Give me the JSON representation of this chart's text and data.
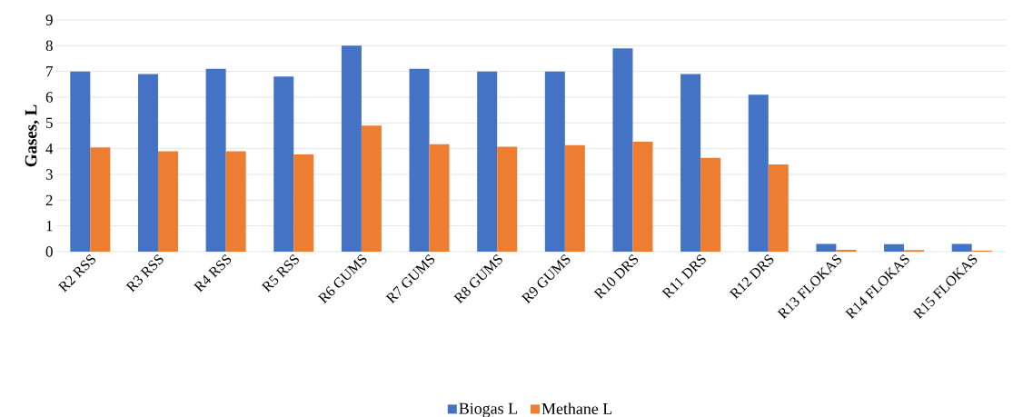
{
  "chart_data": {
    "type": "bar",
    "ylabel": "Gases, L",
    "categories": [
      "R2 RSS",
      "R3 RSS",
      "R4 RSS",
      "R5 RSS",
      "R6 GUMS",
      "R7 GUMS",
      "R8 GUMS",
      "R9 GUMS",
      "R10 DRS",
      "R11 DRS",
      "R12 DRS",
      "R13 FLOKAS",
      "R14 FLOKAS",
      "R15 FLOKAS"
    ],
    "series": [
      {
        "name": "Biogas L",
        "color": "#4472c4",
        "values": [
          7.0,
          6.9,
          7.1,
          6.8,
          8.0,
          7.1,
          7.0,
          7.0,
          7.9,
          6.9,
          6.1,
          0.3,
          0.29,
          0.3
        ]
      },
      {
        "name": "Methane L",
        "color": "#ed7d31",
        "values": [
          4.05,
          3.9,
          3.9,
          3.78,
          4.9,
          4.17,
          4.08,
          4.14,
          4.27,
          3.64,
          3.39,
          0.07,
          0.06,
          0.04
        ]
      }
    ],
    "ylim": [
      0,
      9
    ],
    "yticks": [
      0,
      1,
      2,
      3,
      4,
      5,
      6,
      7,
      8,
      9
    ],
    "grid": "y",
    "legend": "bottom"
  }
}
